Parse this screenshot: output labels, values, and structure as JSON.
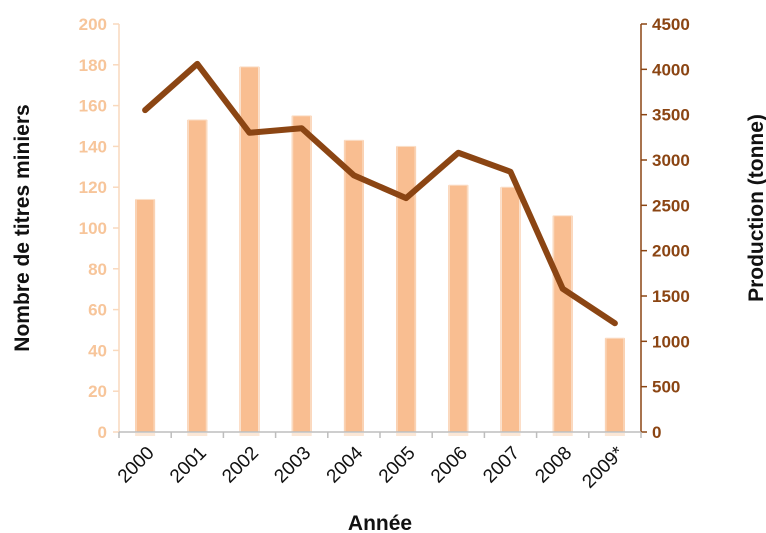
{
  "chart_data": {
    "type": "bar+line",
    "categories": [
      "2000",
      "2001",
      "2002",
      "2003",
      "2004",
      "2005",
      "2006",
      "2007",
      "2008",
      "2009*"
    ],
    "series": [
      {
        "type": "bar",
        "axis": "left",
        "color": "#f9be91",
        "values": [
          114,
          153,
          179,
          155,
          143,
          140,
          121,
          120,
          106,
          46
        ]
      },
      {
        "type": "line",
        "axis": "right",
        "color": "#8b4513",
        "values": [
          3550,
          4060,
          3300,
          3350,
          2830,
          2580,
          3080,
          2870,
          1580,
          1200
        ]
      }
    ],
    "xlabel": "Année",
    "ylabel_left": "Nombre de titres miniers",
    "ylabel_right": "Production (tonne)",
    "ylim_left": [
      0,
      200
    ],
    "ylim_right": [
      0,
      4500
    ],
    "yticks_left": [
      "0",
      "20",
      "40",
      "60",
      "80",
      "100",
      "120",
      "140",
      "160",
      "180",
      "200"
    ],
    "yticks_right": [
      "0",
      "500",
      "1000",
      "1500",
      "2000",
      "2500",
      "3000",
      "3500",
      "4000",
      "4500"
    ],
    "grid": false,
    "legend": "none"
  }
}
